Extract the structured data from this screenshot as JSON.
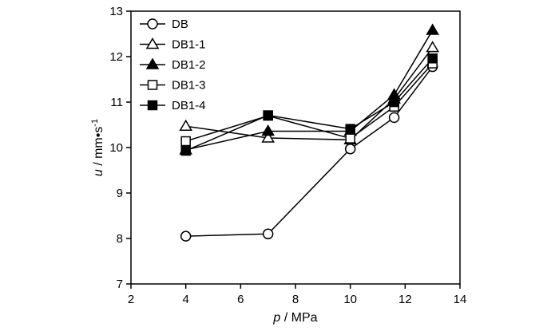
{
  "chart_data": {
    "type": "line",
    "xlabel_var": "p",
    "xlabel_unit": " / MPa",
    "ylabel_var": "u",
    "ylabel_unit": " / mm•s",
    "ylabel_sup": "-1",
    "xlim": [
      2,
      14
    ],
    "ylim": [
      7,
      13
    ],
    "xticks": [
      "2",
      "4",
      "6",
      "8",
      "10",
      "12",
      "14"
    ],
    "yticks": [
      "7",
      "8",
      "9",
      "10",
      "11",
      "12",
      "13"
    ],
    "grid": false,
    "legend_position": "top-left",
    "series": [
      {
        "name": "DB",
        "marker": "circle",
        "fill": "open",
        "x": [
          4,
          7,
          10,
          11.6,
          13
        ],
        "y": [
          8.05,
          8.1,
          9.97,
          10.66,
          11.78
        ]
      },
      {
        "name": "DB1-1",
        "marker": "triangle",
        "fill": "open",
        "x": [
          4,
          7,
          10,
          11.6,
          13
        ],
        "y": [
          10.47,
          10.21,
          10.17,
          11.07,
          12.2
        ]
      },
      {
        "name": "DB1-2",
        "marker": "triangle",
        "fill": "filled",
        "x": [
          4,
          7,
          10,
          11.6,
          13
        ],
        "y": [
          9.95,
          10.36,
          10.36,
          11.16,
          12.58
        ]
      },
      {
        "name": "DB1-3",
        "marker": "square",
        "fill": "open",
        "x": [
          4,
          7,
          10,
          11.6,
          13
        ],
        "y": [
          10.14,
          10.7,
          10.2,
          10.9,
          11.85
        ]
      },
      {
        "name": "DB1-4",
        "marker": "square",
        "fill": "filled",
        "x": [
          4,
          7,
          10,
          11.6,
          13
        ],
        "y": [
          9.93,
          10.71,
          10.41,
          11.0,
          11.96
        ]
      }
    ]
  }
}
